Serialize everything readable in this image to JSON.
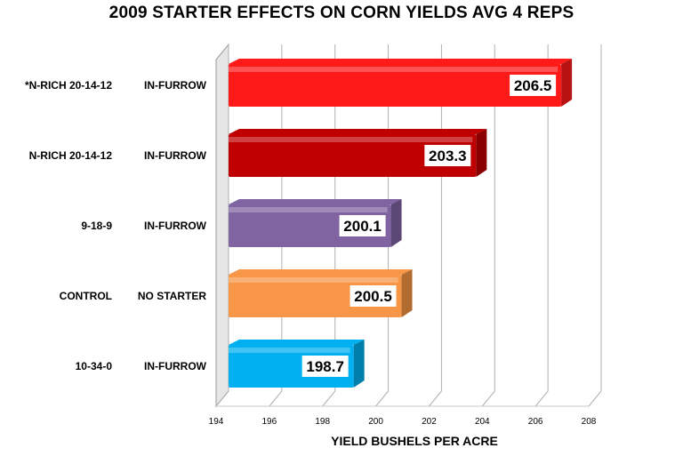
{
  "chart_data": {
    "type": "bar",
    "orientation": "horizontal",
    "title": "2009 STARTER EFFECTS ON CORN YIELDS AVG 4 REPS",
    "xlabel": "YIELD BUSHELS PER ACRE",
    "ylabel": "",
    "xlim": [
      194,
      208
    ],
    "x_ticks": [
      "194",
      "196",
      "198",
      "200",
      "202",
      "204",
      "206",
      "208"
    ],
    "grid": true,
    "legend": "none",
    "categories": [
      {
        "product": "*N-RICH 20-14-12",
        "placement": "IN-FURROW"
      },
      {
        "product": "N-RICH 20-14-12",
        "placement": "IN-FURROW"
      },
      {
        "product": "9-18-9",
        "placement": "IN-FURROW"
      },
      {
        "product": "CONTROL",
        "placement": "NO STARTER"
      },
      {
        "product": "10-34-0",
        "placement": "IN-FURROW"
      }
    ],
    "values": [
      206.5,
      203.3,
      200.1,
      200.5,
      198.7
    ],
    "value_labels": [
      "206.5",
      "203.3",
      "200.1",
      "200.5",
      "198.7"
    ],
    "colors": [
      "#ff1a1a",
      "#c00000",
      "#8064a2",
      "#f79646",
      "#00b0f0"
    ]
  }
}
